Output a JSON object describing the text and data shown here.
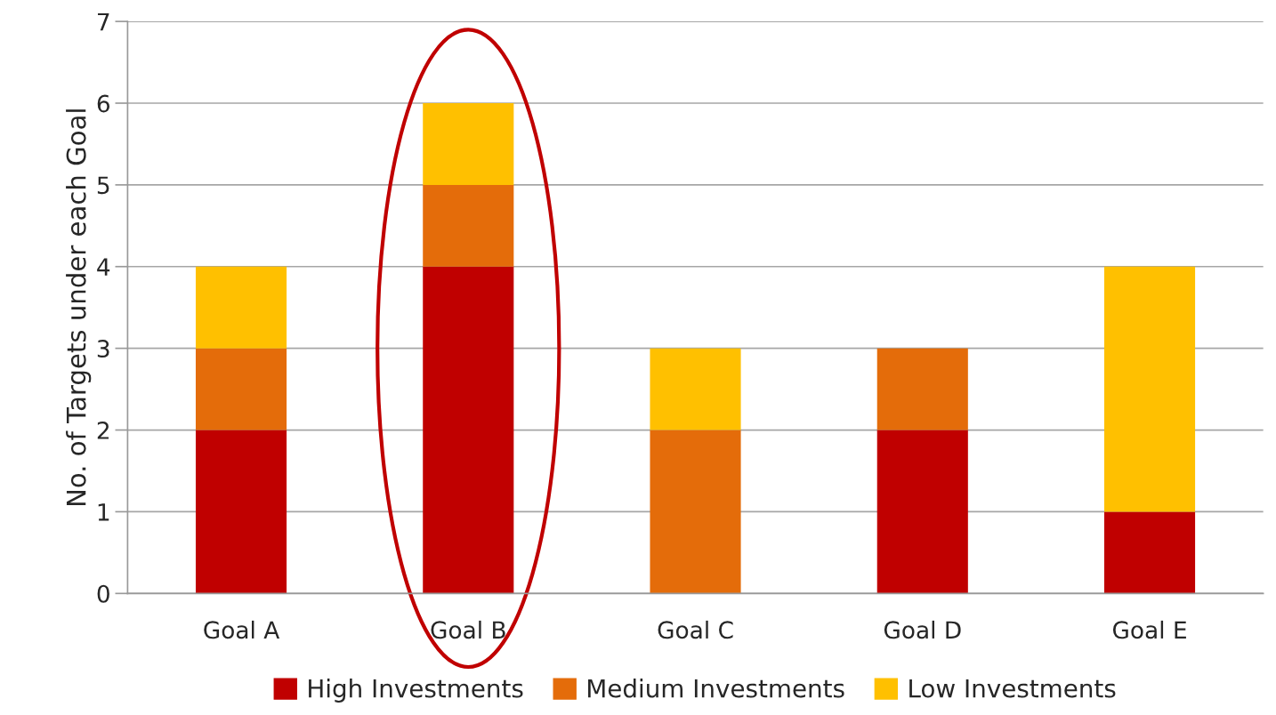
{
  "chart_data": {
    "type": "bar",
    "stacked": true,
    "ylabel": "No. of Targets under each Goal",
    "categories": [
      "Goal A",
      "Goal B",
      "Goal C",
      "Goal D",
      "Goal E"
    ],
    "series": [
      {
        "name": "High Investments",
        "color": "#c00000",
        "values": [
          2,
          4,
          0,
          2,
          1
        ]
      },
      {
        "name": "Medium Investments",
        "color": "#e46c0a",
        "values": [
          1,
          1,
          2,
          1,
          0
        ]
      },
      {
        "name": "Low Investments",
        "color": "#ffc000",
        "values": [
          1,
          1,
          1,
          0,
          3
        ]
      }
    ],
    "ylim": [
      0,
      7
    ],
    "yticks": [
      0,
      1,
      2,
      3,
      4,
      5,
      6,
      7
    ],
    "grid": "y",
    "legend": "bottom"
  }
}
